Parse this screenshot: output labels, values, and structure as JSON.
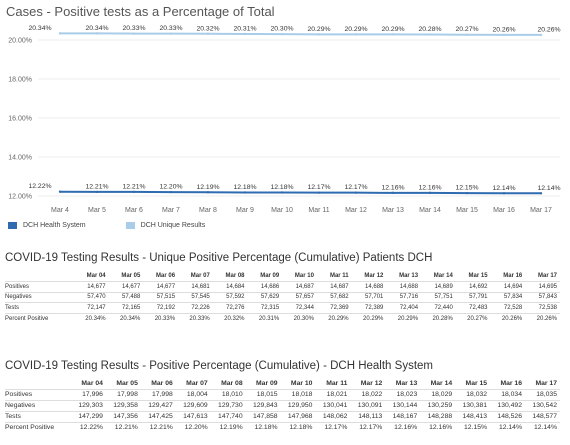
{
  "chart_data": {
    "type": "line",
    "title": "Cases - Positive tests as a Percentage of Total",
    "x": [
      "Mar 4",
      "Mar 5",
      "Mar 6",
      "Mar 7",
      "Mar 8",
      "Mar 9",
      "Mar 10",
      "Mar 11",
      "Mar 12",
      "Mar 13",
      "Mar 14",
      "Mar 15",
      "Mar 16",
      "Mar 17"
    ],
    "y_ticks": [
      "20.00%",
      "18.00%",
      "16.00%",
      "14.00%",
      "12.00%"
    ],
    "ylim": [
      12,
      20.5
    ],
    "grid": true,
    "legend_position": "bottom-left",
    "series": [
      {
        "name": "DCH Health System",
        "color": "#2e6bb0",
        "values": [
          12.22,
          12.21,
          12.21,
          12.2,
          12.19,
          12.18,
          12.18,
          12.17,
          12.17,
          12.16,
          12.16,
          12.15,
          12.14,
          12.14
        ],
        "labels": [
          "12.22%",
          "12.21%",
          "12.21%",
          "12.20%",
          "12.19%",
          "12.18%",
          "12.18%",
          "12.17%",
          "12.17%",
          "12.16%",
          "12.16%",
          "12.15%",
          "12.14%",
          "12.14%"
        ]
      },
      {
        "name": "DCH Unique Results",
        "color": "#a9cde9",
        "values": [
          20.34,
          20.34,
          20.33,
          20.33,
          20.32,
          20.31,
          20.3,
          20.29,
          20.29,
          20.29,
          20.28,
          20.27,
          20.26,
          20.26
        ],
        "labels": [
          "20.34%",
          "20.34%",
          "20.33%",
          "20.33%",
          "20.32%",
          "20.31%",
          "20.30%",
          "20.29%",
          "20.29%",
          "20.29%",
          "20.28%",
          "20.27%",
          "20.26%",
          "20.26%"
        ]
      }
    ]
  },
  "table1": {
    "title": "COVID-19 Testing Results - Unique Positive Percentage (Cumulative) Patients DCH",
    "headers": [
      "Mar 04",
      "Mar 05",
      "Mar 06",
      "Mar 07",
      "Mar 08",
      "Mar 09",
      "Mar 10",
      "Mar 11",
      "Mar 12",
      "Mar 13",
      "Mar 14",
      "Mar 15",
      "Mar 16",
      "Mar 17"
    ],
    "rows": [
      {
        "label": "Positives",
        "values": [
          "14,677",
          "14,677",
          "14,677",
          "14,681",
          "14,684",
          "14,686",
          "14,687",
          "14,687",
          "14,688",
          "14,688",
          "14,689",
          "14,692",
          "14,694",
          "14,695"
        ]
      },
      {
        "label": "Negatives",
        "values": [
          "57,470",
          "57,488",
          "57,515",
          "57,545",
          "57,592",
          "57,629",
          "57,657",
          "57,682",
          "57,701",
          "57,716",
          "57,751",
          "57,791",
          "57,834",
          "57,843"
        ]
      },
      {
        "label": "Tests",
        "values": [
          "72,147",
          "72,165",
          "72,192",
          "72,226",
          "72,276",
          "72,315",
          "72,344",
          "72,369",
          "72,389",
          "72,404",
          "72,440",
          "72,483",
          "72,528",
          "72,538"
        ]
      },
      {
        "label": "Percent Positive",
        "values": [
          "20.34%",
          "20.34%",
          "20.33%",
          "20.33%",
          "20.32%",
          "20.31%",
          "20.30%",
          "20.29%",
          "20.29%",
          "20.29%",
          "20.28%",
          "20.27%",
          "20.26%",
          "20.26%"
        ]
      }
    ]
  },
  "table2": {
    "title": "COVID-19 Testing Results - Positive Percentage (Cumulative) - DCH Health System",
    "headers": [
      "Mar 04",
      "Mar 05",
      "Mar 06",
      "Mar 07",
      "Mar 08",
      "Mar 09",
      "Mar 10",
      "Mar 11",
      "Mar 12",
      "Mar 13",
      "Mar 14",
      "Mar 15",
      "Mar 16",
      "Mar 17"
    ],
    "rows": [
      {
        "label": "Positives",
        "values": [
          "17,996",
          "17,998",
          "17,998",
          "18,004",
          "18,010",
          "18,015",
          "18,018",
          "18,021",
          "18,022",
          "18,023",
          "18,029",
          "18,032",
          "18,034",
          "18,035"
        ]
      },
      {
        "label": "Negatives",
        "values": [
          "129,303",
          "129,358",
          "129,427",
          "129,609",
          "129,730",
          "129,843",
          "129,950",
          "130,041",
          "130,091",
          "130,144",
          "130,259",
          "130,381",
          "130,492",
          "130,542"
        ]
      },
      {
        "label": "Tests",
        "values": [
          "147,299",
          "147,356",
          "147,425",
          "147,613",
          "147,740",
          "147,858",
          "147,968",
          "148,062",
          "148,113",
          "148,167",
          "148,288",
          "148,413",
          "148,526",
          "148,577"
        ]
      },
      {
        "label": "Percent Positive",
        "values": [
          "12.22%",
          "12.21%",
          "12.21%",
          "12.20%",
          "12.19%",
          "12.18%",
          "12.18%",
          "12.17%",
          "12.17%",
          "12.16%",
          "12.16%",
          "12.15%",
          "12.14%",
          "12.14%"
        ]
      }
    ]
  }
}
